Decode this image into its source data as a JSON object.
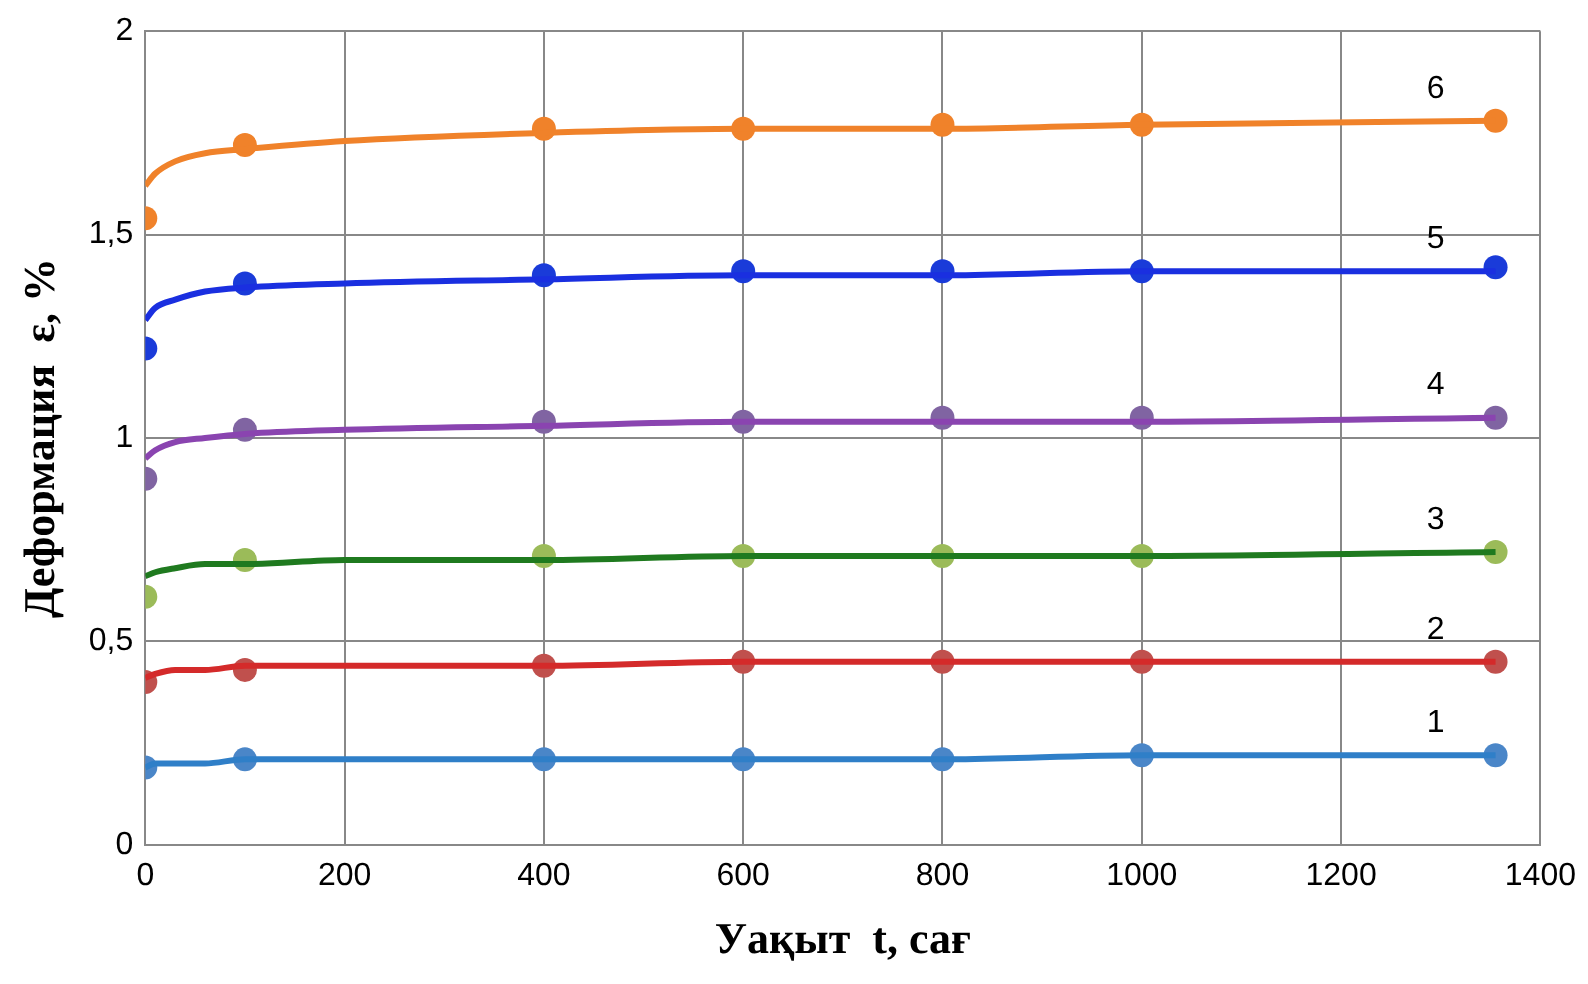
{
  "chart_data": {
    "type": "line",
    "xlabel": "Уақыт  t, сағ",
    "ylabel": "Деформация  ε, %",
    "xlim": [
      0,
      1400
    ],
    "xticks": [
      0,
      200,
      400,
      600,
      800,
      1000,
      1200,
      1400
    ],
    "ylim": [
      0,
      2
    ],
    "yticks": [
      0,
      {
        "value": 0.5,
        "label": "0,5"
      },
      1,
      {
        "value": 1.5,
        "label": "1,5"
      },
      2
    ],
    "grid": true,
    "legend": false,
    "series": [
      {
        "name": "1",
        "color": "#2f7fc8",
        "marker": "none",
        "x": [
          0,
          10,
          30,
          60,
          100,
          200,
          400,
          600,
          800,
          1000,
          1355
        ],
        "values": [
          0.19,
          0.2,
          0.2,
          0.2,
          0.21,
          0.21,
          0.21,
          0.21,
          0.21,
          0.22,
          0.22
        ]
      },
      {
        "name": "2",
        "color": "#d42a2a",
        "marker": "none",
        "x": [
          0,
          10,
          30,
          60,
          100,
          200,
          400,
          600,
          800,
          1000,
          1355
        ],
        "values": [
          0.41,
          0.42,
          0.43,
          0.43,
          0.44,
          0.44,
          0.44,
          0.45,
          0.45,
          0.45,
          0.45
        ]
      },
      {
        "name": "3",
        "color": "#1f7a1f",
        "marker": "none",
        "x": [
          0,
          10,
          30,
          60,
          100,
          200,
          400,
          600,
          800,
          1000,
          1355
        ],
        "values": [
          0.66,
          0.67,
          0.68,
          0.69,
          0.69,
          0.7,
          0.7,
          0.71,
          0.71,
          0.71,
          0.72
        ]
      },
      {
        "name": "4",
        "color": "#8a44b0",
        "marker": "none",
        "x": [
          0,
          10,
          30,
          60,
          100,
          200,
          400,
          600,
          800,
          1000,
          1355
        ],
        "values": [
          0.95,
          0.97,
          0.99,
          1.0,
          1.01,
          1.02,
          1.03,
          1.04,
          1.04,
          1.04,
          1.05
        ]
      },
      {
        "name": "5",
        "color": "#1a2fe0",
        "marker": "none",
        "x": [
          0,
          10,
          30,
          60,
          100,
          200,
          400,
          600,
          800,
          1000,
          1355
        ],
        "values": [
          1.29,
          1.32,
          1.34,
          1.36,
          1.37,
          1.38,
          1.39,
          1.4,
          1.4,
          1.41,
          1.41
        ]
      },
      {
        "name": "6",
        "color": "#f0822a",
        "marker": "none",
        "x": [
          0,
          10,
          30,
          60,
          100,
          200,
          400,
          600,
          800,
          1000,
          1355
        ],
        "values": [
          1.62,
          1.65,
          1.68,
          1.7,
          1.71,
          1.73,
          1.75,
          1.76,
          1.76,
          1.77,
          1.78
        ]
      },
      {
        "type": "scatter",
        "color": "#4a86c8",
        "marker": "circle",
        "x": [
          0,
          100,
          400,
          600,
          800,
          1000,
          1355
        ],
        "values": [
          0.19,
          0.21,
          0.21,
          0.21,
          0.21,
          0.22,
          0.22
        ]
      },
      {
        "type": "scatter",
        "color": "#c0504d",
        "marker": "circle",
        "x": [
          0,
          100,
          400,
          600,
          800,
          1000,
          1355
        ],
        "values": [
          0.4,
          0.43,
          0.44,
          0.45,
          0.45,
          0.45,
          0.45
        ]
      },
      {
        "type": "scatter",
        "color": "#9bbb59",
        "marker": "circle",
        "x": [
          0,
          100,
          400,
          600,
          800,
          1000,
          1355
        ],
        "values": [
          0.61,
          0.7,
          0.71,
          0.71,
          0.71,
          0.71,
          0.72
        ]
      },
      {
        "type": "scatter",
        "color": "#8064a2",
        "marker": "circle",
        "x": [
          0,
          100,
          400,
          600,
          800,
          1000,
          1355
        ],
        "values": [
          0.9,
          1.02,
          1.04,
          1.04,
          1.05,
          1.05,
          1.05
        ]
      },
      {
        "type": "scatter",
        "color": "#1a3bd9",
        "marker": "circle",
        "x": [
          0,
          100,
          400,
          600,
          800,
          1000,
          1355
        ],
        "values": [
          1.22,
          1.38,
          1.4,
          1.41,
          1.41,
          1.41,
          1.42
        ]
      },
      {
        "type": "scatter",
        "color": "#f0822a",
        "marker": "circle",
        "x": [
          0,
          100,
          400,
          600,
          800,
          1000,
          1355
        ],
        "values": [
          1.54,
          1.72,
          1.76,
          1.76,
          1.77,
          1.77,
          1.78
        ]
      }
    ]
  }
}
